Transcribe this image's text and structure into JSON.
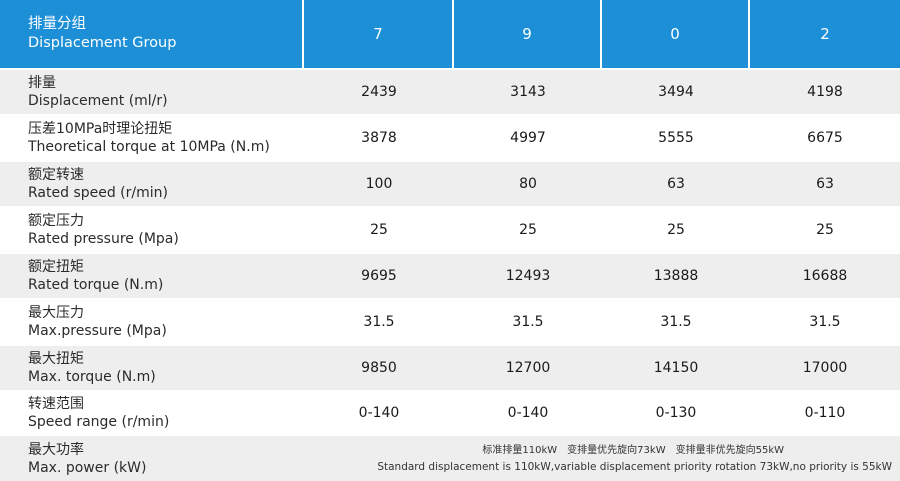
{
  "header": {
    "label_cn": "排量分组",
    "label_en": "Displacement Group",
    "groups": [
      "7",
      "9",
      "0",
      "2"
    ]
  },
  "rows": [
    {
      "label_cn": "排量",
      "label_en": "Displacement (ml/r)",
      "values": [
        "2439",
        "3143",
        "3494",
        "4198"
      ]
    },
    {
      "label_cn": "压差10MPa时理论扭矩",
      "label_en": "Theoretical torque at 10MPa (N.m)",
      "values": [
        "3878",
        "4997",
        "5555",
        "6675"
      ]
    },
    {
      "label_cn": "额定转速",
      "label_en": "Rated speed (r/min)",
      "values": [
        "100",
        "80",
        "63",
        "63"
      ]
    },
    {
      "label_cn": "额定压力",
      "label_en": "Rated pressure (Mpa)",
      "values": [
        "25",
        "25",
        "25",
        "25"
      ]
    },
    {
      "label_cn": "额定扭矩",
      "label_en": "Rated torque (N.m)",
      "values": [
        "9695",
        "12493",
        "13888",
        "16688"
      ]
    },
    {
      "label_cn": "最大压力",
      "label_en": "Max.pressure (Mpa)",
      "values": [
        "31.5",
        "31.5",
        "31.5",
        "31.5"
      ]
    },
    {
      "label_cn": "最大扭矩",
      "label_en": "Max. torque (N.m)",
      "values": [
        "9850",
        "12700",
        "14150",
        "17000"
      ]
    },
    {
      "label_cn": "转速范围",
      "label_en": "Speed range (r/min)",
      "values": [
        "0-140",
        "0-140",
        "0-130",
        "0-110"
      ]
    }
  ],
  "power_row": {
    "label_cn": "最大功率",
    "label_en": "Max. power (kW)",
    "note_cn": "标准排量110kW　变排量优先旋向73kW　变排量非优先旋向55kW",
    "note_en": "Standard displacement is 110kW,variable displacement priority rotation 73kW,no priority is 55kW"
  },
  "colors": {
    "header_bg": "#1c8fd7",
    "row_alt_bg": "#eeeeee"
  }
}
